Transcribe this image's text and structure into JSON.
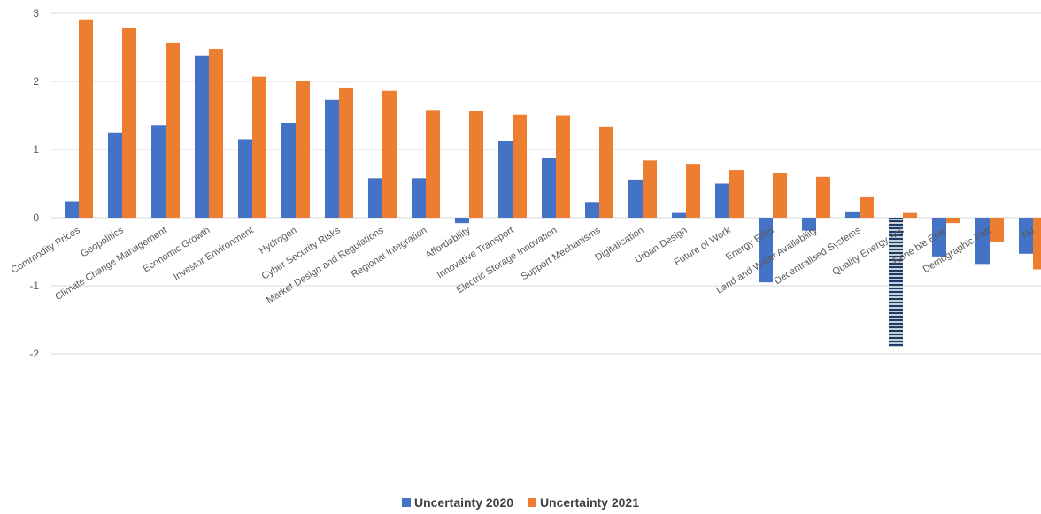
{
  "chart_data": {
    "type": "bar",
    "categories": [
      "Commodity Prices",
      "Geopolitics",
      "Climate Change Management",
      "Economic Growth",
      "Investor Environment",
      "Hydrogen",
      "Cyber Security Risks",
      "Market Design and Regulations",
      "Regional Integration",
      "Affordability",
      "Innovative Transport",
      "Electric Storage Innovation",
      "Support Mechanisms",
      "Digitalisation",
      "Urban Design",
      "Future of Work",
      "Energy Efficiency",
      "Land and Water Availability",
      "Decentralised Systems",
      "Quality Energy Access",
      "Renewable Energy",
      "Demographic Patterns",
      "Nuclear"
    ],
    "category_labels_visible": [
      "Commodity Prices",
      "Geopolitics",
      "Climate Change Management",
      "Economic Growth",
      "Investor Environment",
      "Hydrogen",
      "Cyber Security Risks",
      "Market Design and Regulations",
      "Regional Integration",
      "Affordability",
      "Innovative Transport",
      "Electric Storage Innovation",
      "Support Mechanisms",
      "Digitalisation",
      "Urban Design",
      "Future of Work",
      "Energy Effici",
      "Land and Water Availability",
      "Decentralised Systems",
      "Quality Energy Acc",
      "Rene ble Ener",
      "Demographic Patt",
      "Nu"
    ],
    "series": [
      {
        "name": "Uncertainty 2020",
        "color": "#4472C4",
        "values": [
          0.24,
          1.25,
          1.36,
          2.38,
          1.15,
          1.39,
          1.73,
          0.58,
          0.58,
          -0.08,
          1.13,
          0.87,
          0.23,
          0.56,
          0.07,
          0.5,
          -0.95,
          -0.19,
          0.08,
          -1.9,
          -0.57,
          -0.68,
          -0.53
        ]
      },
      {
        "name": "Uncertainty 2021",
        "color": "#ED7D31",
        "values": [
          2.9,
          2.78,
          2.56,
          2.48,
          2.07,
          2.0,
          1.91,
          1.86,
          1.58,
          1.57,
          1.51,
          1.5,
          1.34,
          0.84,
          0.79,
          0.7,
          0.66,
          0.6,
          0.3,
          0.07,
          -0.08,
          -0.35,
          -0.76
        ]
      }
    ],
    "yticks": [
      "3",
      "2",
      "1",
      "0",
      "-1",
      "-2"
    ],
    "ylim": [
      -2,
      3
    ],
    "grid": true,
    "legend_position": "bottom"
  }
}
